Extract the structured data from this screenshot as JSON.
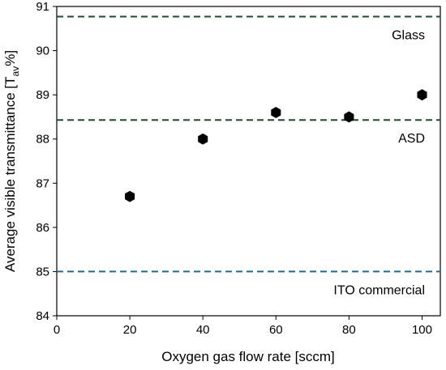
{
  "chart_data": {
    "type": "scatter",
    "xlabel": "Oxygen gas flow rate [sccm]",
    "ylabel": {
      "prefix": "Average visible transmittance [T",
      "subscript": "av",
      "suffix": "%]"
    },
    "xlim": [
      0,
      105
    ],
    "ylim": [
      84,
      91
    ],
    "xticks": [
      0,
      20,
      40,
      60,
      80,
      100
    ],
    "yticks": [
      84,
      85,
      86,
      87,
      88,
      89,
      90,
      91
    ],
    "grid": false,
    "legend": "none",
    "marker": "hexagon",
    "series": [
      {
        "color": "#000000",
        "points": [
          {
            "x": 20,
            "y": 86.7
          },
          {
            "x": 40,
            "y": 88.0
          },
          {
            "x": 60,
            "y": 88.6
          },
          {
            "x": 80,
            "y": 88.5
          },
          {
            "x": 100,
            "y": 89.0
          }
        ]
      }
    ],
    "reference_lines": [
      {
        "label": "Glass",
        "y": 90.77,
        "color": "#1f4d2b",
        "style": "dashed",
        "label_position": "below-right"
      },
      {
        "label": "ASD",
        "y": 88.43,
        "color": "#1f4d2b",
        "style": "dashed",
        "label_position": "below-right"
      },
      {
        "label": "ITO commercial",
        "y": 85.0,
        "color": "#1f6b8c",
        "style": "dashed",
        "label_position": "below-right"
      }
    ]
  }
}
